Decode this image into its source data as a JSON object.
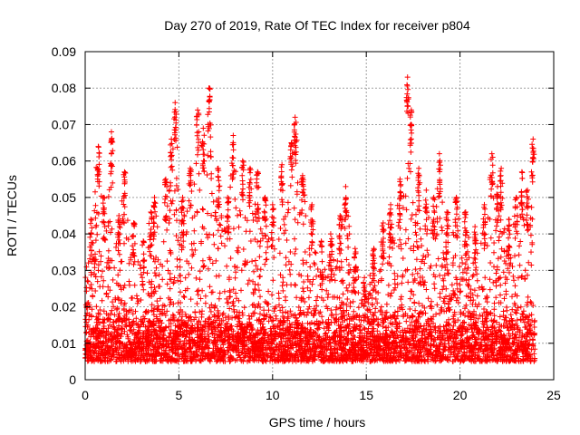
{
  "chart_data": {
    "type": "scatter",
    "title": "Day 270 of 2019, Rate Of TEC Index for receiver p804",
    "xlabel": "GPS time / hours",
    "ylabel": "ROTI / TECUs",
    "xlim": [
      0,
      25
    ],
    "ylim": [
      0,
      0.09
    ],
    "x_ticks": [
      "0",
      "5",
      "10",
      "15",
      "20",
      "25"
    ],
    "y_ticks": [
      "0",
      "0.01",
      "0.02",
      "0.03",
      "0.04",
      "0.05",
      "0.06",
      "0.07",
      "0.08",
      "0.09"
    ],
    "grid": true,
    "marker": "+",
    "marker_color": "#ff0000",
    "baseline_band": [
      0.005,
      0.016
    ],
    "x_range_observed": [
      0,
      24
    ],
    "series": [
      {
        "name": "ROTI",
        "envelope_peaks": [
          {
            "x": 0.3,
            "y": 0.044
          },
          {
            "x": 0.7,
            "y": 0.064
          },
          {
            "x": 1.0,
            "y": 0.05
          },
          {
            "x": 1.4,
            "y": 0.068
          },
          {
            "x": 1.8,
            "y": 0.045
          },
          {
            "x": 2.1,
            "y": 0.057
          },
          {
            "x": 2.6,
            "y": 0.043
          },
          {
            "x": 3.1,
            "y": 0.038
          },
          {
            "x": 3.5,
            "y": 0.046
          },
          {
            "x": 3.7,
            "y": 0.05
          },
          {
            "x": 4.3,
            "y": 0.055
          },
          {
            "x": 4.6,
            "y": 0.066
          },
          {
            "x": 4.8,
            "y": 0.076
          },
          {
            "x": 5.2,
            "y": 0.05
          },
          {
            "x": 5.6,
            "y": 0.058
          },
          {
            "x": 6.0,
            "y": 0.074
          },
          {
            "x": 6.3,
            "y": 0.069
          },
          {
            "x": 6.6,
            "y": 0.08
          },
          {
            "x": 7.1,
            "y": 0.058
          },
          {
            "x": 7.6,
            "y": 0.05
          },
          {
            "x": 7.9,
            "y": 0.067
          },
          {
            "x": 8.4,
            "y": 0.06
          },
          {
            "x": 8.8,
            "y": 0.058
          },
          {
            "x": 9.2,
            "y": 0.057
          },
          {
            "x": 9.6,
            "y": 0.05
          },
          {
            "x": 10.0,
            "y": 0.048
          },
          {
            "x": 10.5,
            "y": 0.059
          },
          {
            "x": 11.0,
            "y": 0.065
          },
          {
            "x": 11.2,
            "y": 0.072
          },
          {
            "x": 11.6,
            "y": 0.056
          },
          {
            "x": 12.1,
            "y": 0.048
          },
          {
            "x": 12.6,
            "y": 0.038
          },
          {
            "x": 13.1,
            "y": 0.04
          },
          {
            "x": 13.6,
            "y": 0.045
          },
          {
            "x": 13.9,
            "y": 0.053
          },
          {
            "x": 14.4,
            "y": 0.036
          },
          {
            "x": 14.9,
            "y": 0.028
          },
          {
            "x": 15.4,
            "y": 0.036
          },
          {
            "x": 15.9,
            "y": 0.043
          },
          {
            "x": 16.3,
            "y": 0.048
          },
          {
            "x": 16.8,
            "y": 0.055
          },
          {
            "x": 17.2,
            "y": 0.083
          },
          {
            "x": 17.4,
            "y": 0.074
          },
          {
            "x": 17.8,
            "y": 0.058
          },
          {
            "x": 18.2,
            "y": 0.052
          },
          {
            "x": 18.6,
            "y": 0.05
          },
          {
            "x": 18.9,
            "y": 0.062
          },
          {
            "x": 19.3,
            "y": 0.046
          },
          {
            "x": 19.8,
            "y": 0.05
          },
          {
            "x": 20.3,
            "y": 0.046
          },
          {
            "x": 20.8,
            "y": 0.042
          },
          {
            "x": 21.3,
            "y": 0.048
          },
          {
            "x": 21.7,
            "y": 0.062
          },
          {
            "x": 22.0,
            "y": 0.053
          },
          {
            "x": 22.2,
            "y": 0.058
          },
          {
            "x": 22.6,
            "y": 0.044
          },
          {
            "x": 23.0,
            "y": 0.05
          },
          {
            "x": 23.3,
            "y": 0.057
          },
          {
            "x": 23.6,
            "y": 0.052
          },
          {
            "x": 23.9,
            "y": 0.066
          }
        ]
      }
    ]
  }
}
